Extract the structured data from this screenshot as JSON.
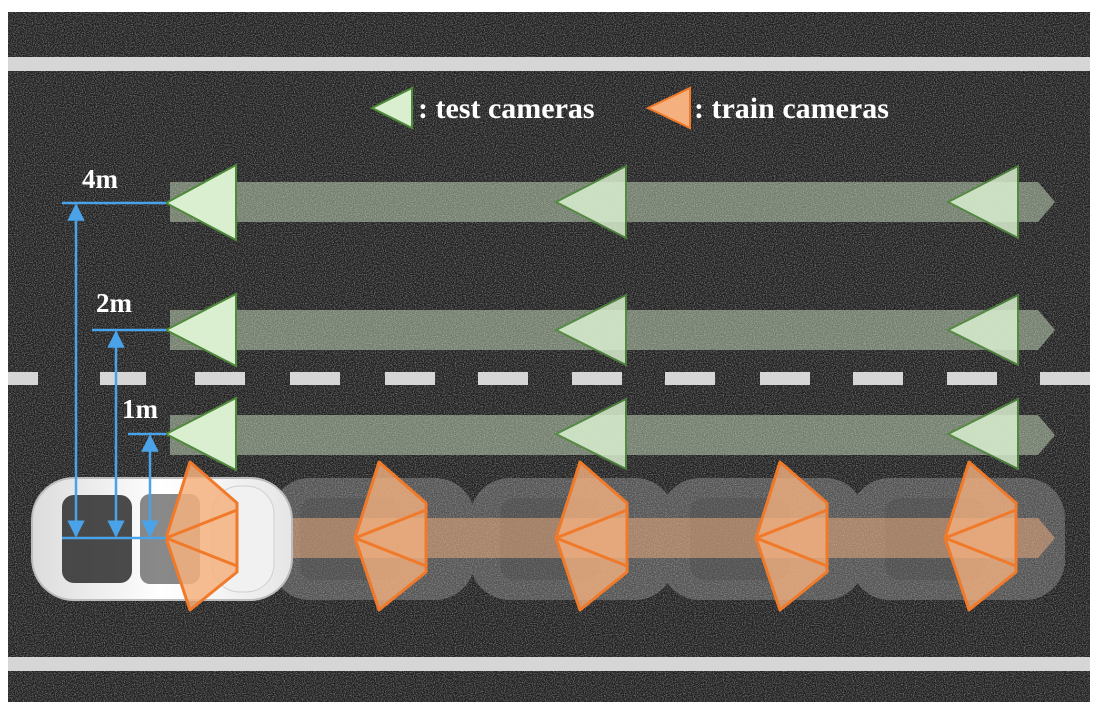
{
  "legend": {
    "test_label": ": test cameras",
    "train_label": ": train cameras"
  },
  "offsets": {
    "four": "4m",
    "two": "2m",
    "one": "1m"
  },
  "colors": {
    "road": "#1e1e1e",
    "lane_line": "#d6d6d6",
    "test_fill": "#d9efcf",
    "test_stroke": "#4e8a3a",
    "train_fill": "#f4b07f",
    "train_stroke": "#f07a2a",
    "measure_line": "#4aa3e8"
  }
}
